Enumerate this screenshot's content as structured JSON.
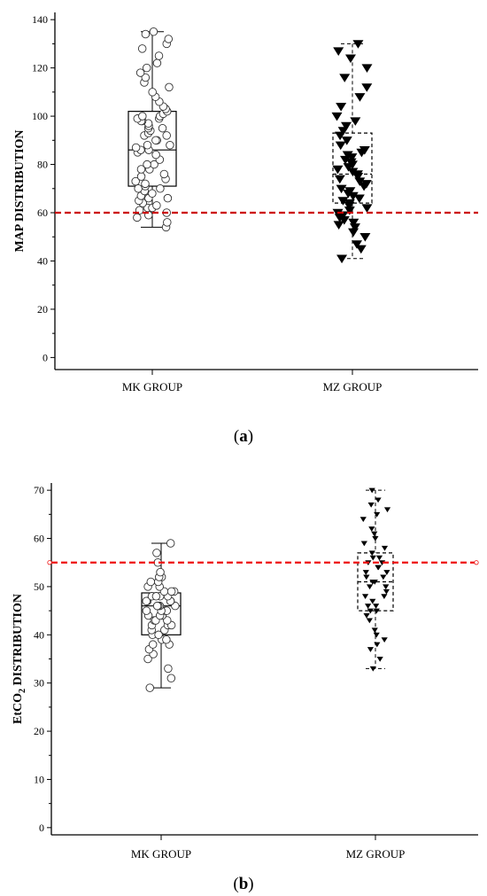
{
  "chart_data": [
    {
      "panel_label": "a",
      "type": "box",
      "ylabel": "MAP DISTRIBUTION",
      "ylim": [
        -5,
        143
      ],
      "yticks": [
        0,
        20,
        40,
        60,
        80,
        100,
        120,
        140
      ],
      "categories": [
        "MK GROUP",
        "MZ GROUP"
      ],
      "reference_line": {
        "value": 60,
        "color": "#cc0000",
        "style": "dashed"
      },
      "series": [
        {
          "marker": "open-circle",
          "box_style": "solid",
          "box": {
            "min": 54,
            "q1": 71,
            "median": 86,
            "q3": 102,
            "max": 135
          },
          "points": [
            54,
            56,
            58,
            59,
            60,
            61,
            62,
            62,
            63,
            64,
            65,
            66,
            66,
            67,
            68,
            69,
            70,
            70,
            71,
            72,
            73,
            74,
            75,
            76,
            78,
            78,
            80,
            80,
            82,
            84,
            85,
            86,
            86,
            87,
            88,
            88,
            90,
            90,
            92,
            92,
            93,
            94,
            95,
            95,
            96,
            97,
            98,
            98,
            99,
            99,
            100,
            100,
            101,
            102,
            103,
            104,
            106,
            108,
            110,
            112,
            114,
            116,
            118,
            120,
            122,
            125,
            128,
            130,
            132,
            134,
            135
          ]
        },
        {
          "marker": "filled-triangle-down",
          "box_style": "dashed",
          "box": {
            "min": 41,
            "q1": 64,
            "median": 76,
            "q3": 93,
            "max": 130
          },
          "points": [
            41,
            45,
            47,
            50,
            52,
            54,
            55,
            56,
            57,
            58,
            59,
            60,
            61,
            62,
            63,
            64,
            65,
            66,
            67,
            68,
            69,
            70,
            71,
            72,
            73,
            74,
            75,
            76,
            77,
            78,
            79,
            80,
            81,
            82,
            83,
            84,
            85,
            86,
            88,
            90,
            92,
            94,
            96,
            98,
            100,
            104,
            108,
            112,
            116,
            120,
            124,
            127,
            130
          ]
        }
      ]
    },
    {
      "panel_label": "b",
      "type": "box",
      "ylabel": "EtCO",
      "ylabel_subscript": "2",
      "ylabel_rest": " DISTRIBUTION",
      "ylim": [
        -1.5,
        71.5
      ],
      "yticks": [
        0,
        10,
        20,
        30,
        40,
        50,
        60,
        70
      ],
      "categories": [
        "MK GROUP",
        "MZ GROUP"
      ],
      "reference_line": {
        "value": 55,
        "color": "#ee1111",
        "style": "dashed"
      },
      "series": [
        {
          "marker": "open-circle",
          "box_style": "solid",
          "box": {
            "min": 29,
            "q1": 40,
            "median": 46,
            "q3": 48.7,
            "max": 59
          },
          "points": [
            29,
            31,
            33,
            35,
            36,
            37,
            38,
            38,
            39,
            39,
            40,
            40,
            41,
            41,
            42,
            42,
            42,
            43,
            43,
            43,
            44,
            44,
            44,
            45,
            45,
            45,
            45,
            46,
            46,
            46,
            46,
            47,
            47,
            47,
            47,
            48,
            48,
            48,
            48,
            49,
            49,
            49,
            50,
            50,
            51,
            51,
            52,
            52,
            53,
            55,
            57,
            59
          ]
        },
        {
          "marker": "filled-triangle-down",
          "box_style": "dashed",
          "box": {
            "min": 33,
            "q1": 45,
            "median": 51,
            "q3": 57,
            "max": 70
          },
          "points": [
            33,
            35,
            37,
            38,
            39,
            40,
            41,
            43,
            44,
            45,
            45,
            46,
            46,
            47,
            48,
            48,
            49,
            50,
            50,
            51,
            51,
            52,
            52,
            53,
            53,
            54,
            54,
            55,
            55,
            56,
            56,
            57,
            58,
            59,
            60,
            61,
            62,
            64,
            65,
            66,
            67,
            68,
            70
          ]
        }
      ]
    }
  ]
}
